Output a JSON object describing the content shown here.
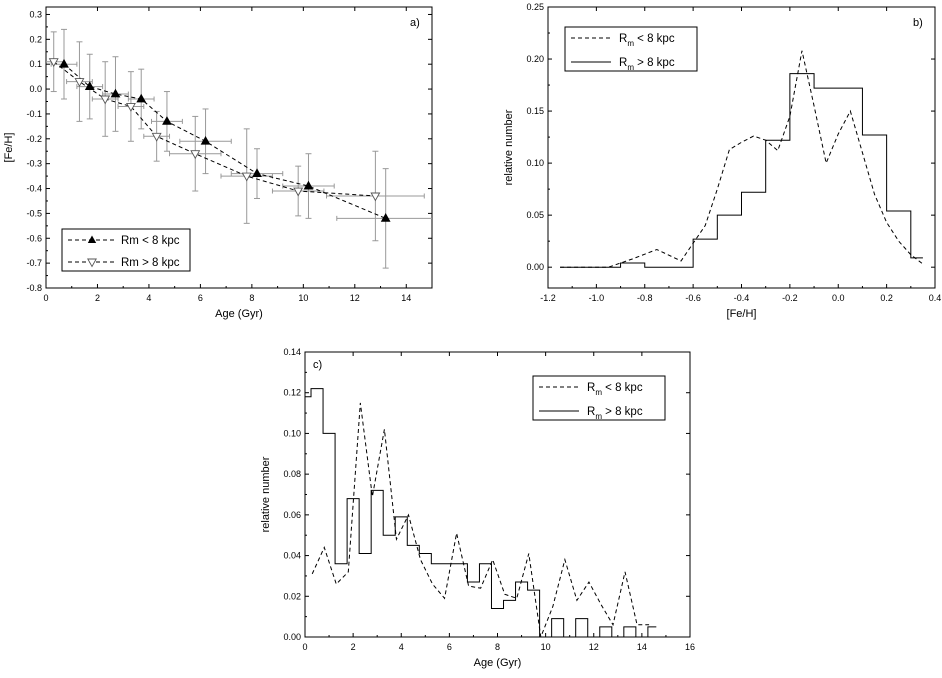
{
  "chart_data": [
    {
      "type": "line",
      "panel_label": "a)",
      "xlabel": "Age (Gyr)",
      "ylabel": "[Fe/H]",
      "xlim": [
        0,
        15
      ],
      "ylim": [
        -0.8,
        0.33
      ],
      "xticks": [
        0,
        2,
        4,
        6,
        8,
        10,
        12,
        14
      ],
      "yticks": [
        -0.8,
        -0.7,
        -0.6,
        -0.5,
        -0.4,
        -0.3,
        -0.2,
        -0.1,
        0.0,
        0.1,
        0.2,
        0.3
      ],
      "xtick_labels": [
        "0",
        "2",
        "4",
        "6",
        "8",
        "10",
        "12",
        "14"
      ],
      "ytick_labels": [
        "-0.8",
        "-0.7",
        "-0.6",
        "-0.5",
        "-0.4",
        "-0.3",
        "-0.2",
        "-0.1",
        "0.0",
        "0.1",
        "0.2",
        "0.3"
      ],
      "legend_position": "bottom-left",
      "series": [
        {
          "name": "Rm < 8 kpc",
          "marker": "filled-up-triangle",
          "line": "dashed",
          "x": [
            0.7,
            1.7,
            2.7,
            3.7,
            4.7,
            6.2,
            8.2,
            10.2,
            13.2
          ],
          "y": [
            0.1,
            0.01,
            -0.02,
            -0.04,
            -0.13,
            -0.21,
            -0.34,
            -0.39,
            -0.52
          ],
          "xerr": [
            0.5,
            0.5,
            0.5,
            0.5,
            0.6,
            1.0,
            1.0,
            1.0,
            1.9
          ],
          "yerr": [
            0.14,
            0.13,
            0.15,
            0.12,
            0.12,
            0.13,
            0.1,
            0.13,
            0.2
          ]
        },
        {
          "name": "Rm > 8 kpc",
          "marker": "open-down-triangle",
          "line": "dashed",
          "x": [
            0.3,
            1.3,
            2.3,
            3.3,
            4.3,
            5.8,
            7.8,
            9.8,
            12.8
          ],
          "y": [
            0.11,
            0.03,
            -0.04,
            -0.07,
            -0.19,
            -0.26,
            -0.35,
            -0.41,
            -0.43
          ],
          "xerr": [
            0.4,
            0.5,
            0.5,
            0.5,
            0.5,
            1.0,
            1.0,
            1.0,
            1.9
          ],
          "yerr": [
            0.12,
            0.16,
            0.15,
            0.14,
            0.1,
            0.15,
            0.19,
            0.1,
            0.18
          ]
        }
      ]
    },
    {
      "type": "line",
      "panel_label": "b)",
      "xlabel": "[Fe/H]",
      "ylabel": "relative number",
      "xlim": [
        -1.2,
        0.4
      ],
      "ylim": [
        -0.02,
        0.25
      ],
      "xticks": [
        -1.2,
        -1.0,
        -0.8,
        -0.6,
        -0.4,
        -0.2,
        0.0,
        0.2,
        0.4
      ],
      "yticks": [
        0.0,
        0.05,
        0.1,
        0.15,
        0.2,
        0.25
      ],
      "xtick_labels": [
        "-1.2",
        "-1.0",
        "-0.8",
        "-0.6",
        "-0.4",
        "-0.2",
        "0.0",
        "0.2",
        "0.4"
      ],
      "ytick_labels": [
        "0.00",
        "0.05",
        "0.10",
        "0.15",
        "0.20",
        "0.25"
      ],
      "legend_position": "top-left",
      "series": [
        {
          "name": "Rm < 8 kpc",
          "legend_main": "R",
          "legend_sub": "m",
          "legend_rest": " < 8 kpc",
          "style": "dashed-curve",
          "x": [
            -1.15,
            -0.95,
            -0.85,
            -0.75,
            -0.65,
            -0.55,
            -0.5,
            -0.45,
            -0.4,
            -0.35,
            -0.3,
            -0.25,
            -0.2,
            -0.15,
            -0.1,
            -0.05,
            0.0,
            0.05,
            0.1,
            0.15,
            0.2,
            0.25,
            0.3,
            0.35
          ],
          "y": [
            0.0,
            0.0,
            0.008,
            0.017,
            0.006,
            0.04,
            0.075,
            0.113,
            0.12,
            0.126,
            0.122,
            0.112,
            0.145,
            0.208,
            0.155,
            0.1,
            0.128,
            0.15,
            0.11,
            0.07,
            0.043,
            0.025,
            0.012,
            0.003
          ]
        },
        {
          "name": "Rm > 8 kpc",
          "legend_main": "R",
          "legend_sub": "m",
          "legend_rest": " > 8 kpc",
          "style": "solid-step",
          "edges": [
            -1.15,
            -0.9,
            -0.8,
            -0.7,
            -0.6,
            -0.5,
            -0.4,
            -0.3,
            -0.2,
            -0.1,
            0.0,
            0.1,
            0.2,
            0.3,
            0.35
          ],
          "values": [
            0.0,
            0.004,
            0.0,
            0.0,
            0.027,
            0.05,
            0.072,
            0.122,
            0.186,
            0.172,
            0.172,
            0.127,
            0.054,
            0.009
          ]
        }
      ]
    },
    {
      "type": "line",
      "panel_label": "c)",
      "xlabel": "Age (Gyr)",
      "ylabel": "relative number",
      "xlim": [
        0,
        16
      ],
      "ylim": [
        0.0,
        0.14
      ],
      "xticks": [
        0,
        2,
        4,
        6,
        8,
        10,
        12,
        14,
        16
      ],
      "yticks": [
        0.0,
        0.02,
        0.04,
        0.06,
        0.08,
        0.1,
        0.12,
        0.14
      ],
      "xtick_labels": [
        "0",
        "2",
        "4",
        "6",
        "8",
        "10",
        "12",
        "14",
        "16"
      ],
      "ytick_labels": [
        "0.00",
        "0.02",
        "0.04",
        "0.06",
        "0.08",
        "0.10",
        "0.12",
        "0.14"
      ],
      "legend_position": "top-right",
      "series": [
        {
          "name": "Rm < 8 kpc",
          "legend_main": "R",
          "legend_sub": "m",
          "legend_rest": " < 8 kpc",
          "style": "dashed-curve",
          "x": [
            0.3,
            0.8,
            1.3,
            1.8,
            2.3,
            2.8,
            3.3,
            3.8,
            4.3,
            4.8,
            5.3,
            5.8,
            6.3,
            6.8,
            7.3,
            7.8,
            8.3,
            8.8,
            9.3,
            9.8,
            10.3,
            10.8,
            11.3,
            11.8,
            12.3,
            12.8,
            13.3,
            13.8,
            14.3
          ],
          "y": [
            0.031,
            0.044,
            0.026,
            0.032,
            0.115,
            0.069,
            0.102,
            0.048,
            0.06,
            0.038,
            0.026,
            0.019,
            0.051,
            0.025,
            0.024,
            0.038,
            0.021,
            0.019,
            0.041,
            0.0,
            0.015,
            0.038,
            0.018,
            0.027,
            0.016,
            0.006,
            0.032,
            0.006,
            0.006
          ]
        },
        {
          "name": "Rm > 8 kpc",
          "legend_main": "R",
          "legend_sub": "m",
          "legend_rest": " > 8 kpc",
          "style": "solid-step",
          "edges": [
            0.0,
            0.25,
            0.75,
            1.25,
            1.75,
            2.25,
            2.75,
            3.25,
            3.75,
            4.25,
            4.75,
            5.25,
            5.75,
            6.25,
            6.75,
            7.25,
            7.75,
            8.25,
            8.75,
            9.25,
            9.75,
            10.25,
            10.75,
            11.25,
            11.75,
            12.25,
            12.75,
            13.25,
            13.75,
            14.25,
            14.6
          ],
          "values": [
            0.118,
            0.122,
            0.1,
            0.036,
            0.068,
            0.041,
            0.072,
            0.05,
            0.059,
            0.045,
            0.041,
            0.036,
            0.036,
            0.036,
            0.027,
            0.036,
            0.014,
            0.018,
            0.027,
            0.023,
            0.0,
            0.009,
            0.0,
            0.009,
            0.0,
            0.005,
            0.0,
            0.005,
            0.0,
            0.005
          ]
        }
      ]
    }
  ]
}
